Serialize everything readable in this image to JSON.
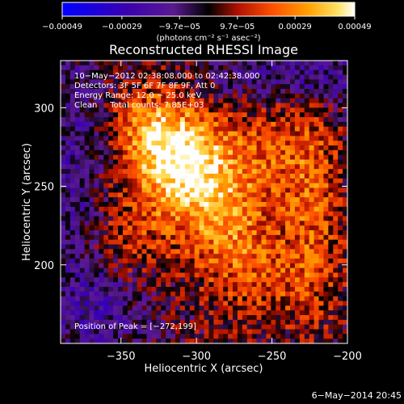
{
  "chart_data": {
    "type": "heatmap",
    "title": "Reconstructed RHESSI Image",
    "xlabel": "Heliocentric X (arcsec)",
    "ylabel": "Heliocentric Y (arcsec)",
    "xlim": [
      -390,
      -200
    ],
    "ylim": [
      150,
      330
    ],
    "x_ticks": [
      {
        "value": -350,
        "label": "−350"
      },
      {
        "value": -300,
        "label": "−300"
      },
      {
        "value": -250,
        "label": "−250"
      },
      {
        "value": -200,
        "label": "−200"
      }
    ],
    "y_ticks": [
      {
        "value": 200,
        "label": "200"
      },
      {
        "value": 250,
        "label": "250"
      },
      {
        "value": 300,
        "label": "300"
      }
    ],
    "colorbar": {
      "range": [
        -0.00049,
        0.00049
      ],
      "ticks": [
        {
          "value": -0.00049,
          "label": "−0.00049"
        },
        {
          "value": -0.00029,
          "label": "−0.00029"
        },
        {
          "value": -9.7e-05,
          "label": "−9.7e−05"
        },
        {
          "value": 9.7e-05,
          "label": "9.7e−05"
        },
        {
          "value": 0.00029,
          "label": "0.00029"
        },
        {
          "value": 0.00049,
          "label": "0.00049"
        }
      ],
      "unit_label": "(photons cm⁻² s⁻¹ asec⁻²)",
      "colors": [
        "#0000ff",
        "#3a00b0",
        "#5a1a90",
        "#000000",
        "#b01000",
        "#ff5000",
        "#ffa000",
        "#ffe060",
        "#ffffff"
      ]
    },
    "peak": {
      "x": -272,
      "y": 199
    },
    "annotations": [
      "10−May−2012 02:38:08.000 to 02:42:38.000",
      "Detectors: 3F 5F 6F 7F 8F 9F, Att 0",
      "Energy Range: 12.0 − 25.0 keV",
      "Clean     Total counts: 7.85E+03",
      "Position of Peak = [−272,199]"
    ],
    "grid": false
  },
  "footer": {
    "timestamp": "6−May−2014 20:45"
  }
}
